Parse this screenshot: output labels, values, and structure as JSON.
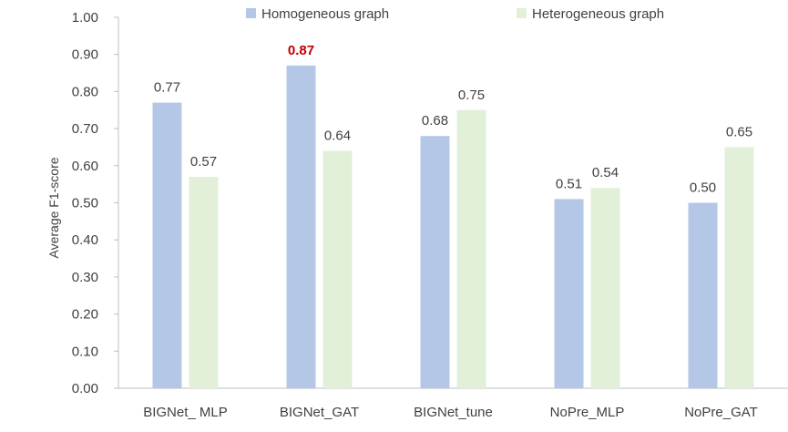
{
  "chart_data": {
    "type": "bar",
    "categories": [
      "BIGNet_ MLP",
      "BIGNet_GAT",
      "BIGNet_tune",
      "NoPre_MLP",
      "NoPre_GAT"
    ],
    "series": [
      {
        "name": "Homogeneous graph",
        "values": [
          0.77,
          0.87,
          0.68,
          0.51,
          0.5
        ],
        "labels": [
          "0.77",
          "0.87",
          "0.68",
          "0.51",
          "0.50"
        ],
        "color": "#b4c7e7"
      },
      {
        "name": "Heterogeneous graph",
        "values": [
          0.57,
          0.64,
          0.75,
          0.54,
          0.65
        ],
        "labels": [
          "0.57",
          "0.64",
          "0.75",
          "0.54",
          "0.65"
        ],
        "color": "#e2f0d9"
      }
    ],
    "highlight": {
      "series": 0,
      "index": 1,
      "color": "#c00000"
    },
    "title": "",
    "xlabel": "",
    "ylabel": "Average F1-score",
    "ylim": [
      0,
      1
    ],
    "yticks": [
      "0.00",
      "0.10",
      "0.20",
      "0.30",
      "0.40",
      "0.50",
      "0.60",
      "0.70",
      "0.80",
      "0.90",
      "1.00"
    ],
    "grid": false,
    "legend_position": "top"
  }
}
